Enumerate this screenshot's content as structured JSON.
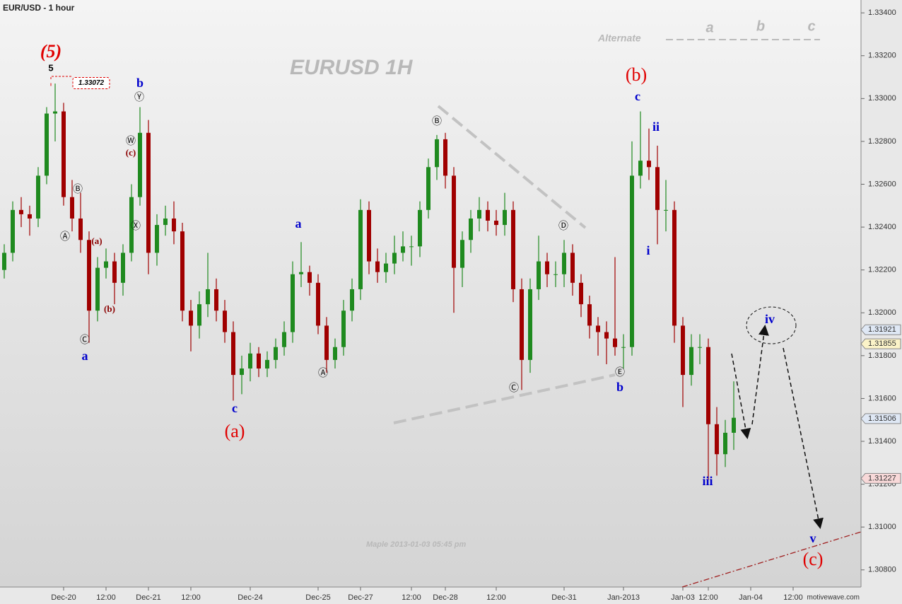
{
  "chart_data": {
    "type": "candlestick",
    "title": "EUR/USD - 1 hour",
    "watermark": "EURUSD  1H",
    "footer": "Maple  2013-01-03  05:45 pm",
    "brand": "motivewave.com",
    "up_color": "#1f8a1f",
    "down_color": "#a00000",
    "ylim": [
      1.3072,
      1.3346
    ],
    "yticks": [
      {
        "value": 1.308,
        "label": "1.30800"
      },
      {
        "value": 1.31,
        "label": "1.31000"
      },
      {
        "value": 1.312,
        "label": "1.31200"
      },
      {
        "value": 1.314,
        "label": "1.31400"
      },
      {
        "value": 1.316,
        "label": "1.31600"
      },
      {
        "value": 1.318,
        "label": "1.31800"
      },
      {
        "value": 1.32,
        "label": "1.32000"
      },
      {
        "value": 1.322,
        "label": "1.32200"
      },
      {
        "value": 1.324,
        "label": "1.32400"
      },
      {
        "value": 1.326,
        "label": "1.32600"
      },
      {
        "value": 1.328,
        "label": "1.32800"
      },
      {
        "value": 1.33,
        "label": "1.33000"
      },
      {
        "value": 1.332,
        "label": "1.33200"
      },
      {
        "value": 1.334,
        "label": "1.33400"
      }
    ],
    "categories": [
      null,
      null,
      null,
      null,
      null,
      null,
      null,
      "Dec-20",
      null,
      null,
      null,
      null,
      "12:00",
      null,
      null,
      null,
      null,
      "Dec-21",
      null,
      null,
      null,
      null,
      "12:00",
      null,
      null,
      null,
      null,
      null,
      null,
      "Dec-24",
      null,
      null,
      null,
      null,
      null,
      null,
      null,
      "Dec-25",
      null,
      null,
      null,
      null,
      "Dec-27",
      null,
      null,
      null,
      null,
      null,
      "12:00",
      null,
      null,
      null,
      "Dec-28",
      null,
      null,
      null,
      null,
      null,
      "12:00",
      null,
      null,
      null,
      null,
      null,
      null,
      null,
      "Dec-31",
      null,
      null,
      null,
      null,
      null,
      null,
      "Jan-2013",
      null,
      null,
      null,
      null,
      null,
      null,
      "Jan-03",
      null,
      null,
      "12:00",
      null,
      null,
      null,
      null,
      "Jan-04",
      null,
      null,
      null,
      null,
      "12:00",
      null,
      null,
      null,
      null,
      null,
      null,
      null
    ],
    "candles": [
      [
        1.322,
        1.3232,
        1.3216,
        1.3228
      ],
      [
        1.3228,
        1.3252,
        1.3224,
        1.3248
      ],
      [
        1.3248,
        1.3254,
        1.324,
        1.3246
      ],
      [
        1.3246,
        1.325,
        1.3236,
        1.3244
      ],
      [
        1.3244,
        1.3268,
        1.324,
        1.3264
      ],
      [
        1.3264,
        1.3296,
        1.326,
        1.3293
      ],
      [
        1.3293,
        1.3307,
        1.328,
        1.3294
      ],
      [
        1.3294,
        1.3298,
        1.325,
        1.3254
      ],
      [
        1.3254,
        1.3262,
        1.3238,
        1.3244
      ],
      [
        1.3244,
        1.3256,
        1.3228,
        1.3234
      ],
      [
        1.3234,
        1.3238,
        1.3186,
        1.3201
      ],
      [
        1.3201,
        1.3226,
        1.3196,
        1.3221
      ],
      [
        1.3221,
        1.323,
        1.3216,
        1.3224
      ],
      [
        1.3224,
        1.3228,
        1.3204,
        1.3214
      ],
      [
        1.3214,
        1.3232,
        1.3208,
        1.3228
      ],
      [
        1.3228,
        1.326,
        1.3224,
        1.3254
      ],
      [
        1.3254,
        1.3296,
        1.325,
        1.3284
      ],
      [
        1.3284,
        1.329,
        1.3218,
        1.3228
      ],
      [
        1.3228,
        1.3246,
        1.3222,
        1.3241
      ],
      [
        1.3241,
        1.325,
        1.3236,
        1.3244
      ],
      [
        1.3244,
        1.3252,
        1.3232,
        1.3238
      ],
      [
        1.3238,
        1.3242,
        1.3196,
        1.3201
      ],
      [
        1.3201,
        1.3206,
        1.3182,
        1.3194
      ],
      [
        1.3194,
        1.321,
        1.3188,
        1.3204
      ],
      [
        1.3204,
        1.3228,
        1.3198,
        1.3211
      ],
      [
        1.3211,
        1.3216,
        1.3196,
        1.3201
      ],
      [
        1.3201,
        1.3206,
        1.3186,
        1.3191
      ],
      [
        1.3191,
        1.3196,
        1.3159,
        1.3171
      ],
      [
        1.3171,
        1.318,
        1.3162,
        1.3174
      ],
      [
        1.3174,
        1.3186,
        1.3168,
        1.3181
      ],
      [
        1.3181,
        1.3184,
        1.317,
        1.3174
      ],
      [
        1.3174,
        1.3182,
        1.317,
        1.3178
      ],
      [
        1.3178,
        1.3188,
        1.3174,
        1.3184
      ],
      [
        1.3184,
        1.3196,
        1.318,
        1.3191
      ],
      [
        1.3191,
        1.3224,
        1.3186,
        1.3218
      ],
      [
        1.3218,
        1.3233,
        1.3212,
        1.3219
      ],
      [
        1.3219,
        1.3222,
        1.3208,
        1.3214
      ],
      [
        1.3214,
        1.3218,
        1.319,
        1.3194
      ],
      [
        1.3194,
        1.3198,
        1.3172,
        1.3178
      ],
      [
        1.3178,
        1.3188,
        1.3174,
        1.3184
      ],
      [
        1.3184,
        1.3206,
        1.318,
        1.3201
      ],
      [
        1.3201,
        1.3216,
        1.3196,
        1.3211
      ],
      [
        1.3211,
        1.3253,
        1.3206,
        1.3248
      ],
      [
        1.3248,
        1.3252,
        1.3218,
        1.3224
      ],
      [
        1.3224,
        1.323,
        1.3214,
        1.3219
      ],
      [
        1.3219,
        1.3228,
        1.3214,
        1.3223
      ],
      [
        1.3223,
        1.3236,
        1.3218,
        1.3228
      ],
      [
        1.3228,
        1.3238,
        1.3224,
        1.3231
      ],
      [
        1.3231,
        1.3236,
        1.3222,
        1.3231
      ],
      [
        1.3231,
        1.3252,
        1.3226,
        1.3248
      ],
      [
        1.3248,
        1.3272,
        1.3244,
        1.3268
      ],
      [
        1.3268,
        1.3283,
        1.3262,
        1.3281
      ],
      [
        1.3281,
        1.3284,
        1.3258,
        1.3264
      ],
      [
        1.3264,
        1.3268,
        1.32,
        1.3221
      ],
      [
        1.3221,
        1.3238,
        1.3212,
        1.3234
      ],
      [
        1.3234,
        1.3248,
        1.3228,
        1.3244
      ],
      [
        1.3244,
        1.3254,
        1.3238,
        1.3248
      ],
      [
        1.3248,
        1.3252,
        1.3238,
        1.3243
      ],
      [
        1.3243,
        1.3248,
        1.3236,
        1.3241
      ],
      [
        1.3241,
        1.3256,
        1.3236,
        1.3248
      ],
      [
        1.3248,
        1.3252,
        1.3205,
        1.3211
      ],
      [
        1.3211,
        1.3216,
        1.3164,
        1.3178
      ],
      [
        1.3178,
        1.3216,
        1.3172,
        1.3211
      ],
      [
        1.3211,
        1.3236,
        1.3206,
        1.3224
      ],
      [
        1.3224,
        1.3228,
        1.3212,
        1.3218
      ],
      [
        1.3218,
        1.3224,
        1.3212,
        1.3218
      ],
      [
        1.3218,
        1.3234,
        1.3212,
        1.3228
      ],
      [
        1.3228,
        1.3232,
        1.3208,
        1.3214
      ],
      [
        1.3214,
        1.3218,
        1.3198,
        1.3204
      ],
      [
        1.3204,
        1.3208,
        1.3188,
        1.3194
      ],
      [
        1.3194,
        1.3198,
        1.318,
        1.3191
      ],
      [
        1.3191,
        1.3196,
        1.3176,
        1.3188
      ],
      [
        1.3188,
        1.3226,
        1.318,
        1.3184
      ],
      [
        1.3184,
        1.319,
        1.3174,
        1.3184
      ],
      [
        1.3184,
        1.328,
        1.318,
        1.3264
      ],
      [
        1.3264,
        1.3294,
        1.3258,
        1.3271
      ],
      [
        1.3271,
        1.3286,
        1.3262,
        1.3268
      ],
      [
        1.3268,
        1.3278,
        1.3232,
        1.3248
      ],
      [
        1.3248,
        1.3262,
        1.3238,
        1.3248
      ],
      [
        1.3248,
        1.3252,
        1.3186,
        1.3194
      ],
      [
        1.3194,
        1.3198,
        1.3156,
        1.3171
      ],
      [
        1.3171,
        1.319,
        1.3166,
        1.3184
      ],
      [
        1.3184,
        1.319,
        1.3176,
        1.3184
      ],
      [
        1.3184,
        1.3188,
        1.3122,
        1.3148
      ],
      [
        1.3148,
        1.3156,
        1.3124,
        1.3134
      ],
      [
        1.3134,
        1.315,
        1.3128,
        1.3144
      ],
      [
        1.3144,
        1.3168,
        1.3136,
        1.3151
      ],
      null,
      null,
      null,
      null,
      null,
      null,
      null,
      null,
      null,
      null,
      null,
      null,
      null,
      null
    ],
    "high_marker": 1.33072,
    "price_markers": [
      {
        "value": 1.31921,
        "color": "#dfe8f5"
      },
      {
        "value": 1.31855,
        "color": "#fbf3c8"
      },
      {
        "value": 1.31506,
        "color": "#dfe8f5"
      },
      {
        "value": 1.31227,
        "color": "#f8d9d9"
      }
    ],
    "annotations": [
      "(5)",
      "5",
      "b",
      "Ⓨ",
      "Ⓦ",
      "(c)",
      "Ⓧ",
      "Ⓑ",
      "Ⓐ",
      "(a)",
      "(b)",
      "Ⓒ",
      "a",
      "a",
      "c",
      "(a)",
      "Ⓐ",
      "Ⓑ",
      "Ⓓ",
      "Ⓒ",
      "Ⓔ",
      "b",
      "(b)",
      "c",
      "ii",
      "i",
      "iii",
      "iv",
      "v",
      "(c)",
      "Alternate",
      "a",
      "b",
      "c"
    ]
  }
}
